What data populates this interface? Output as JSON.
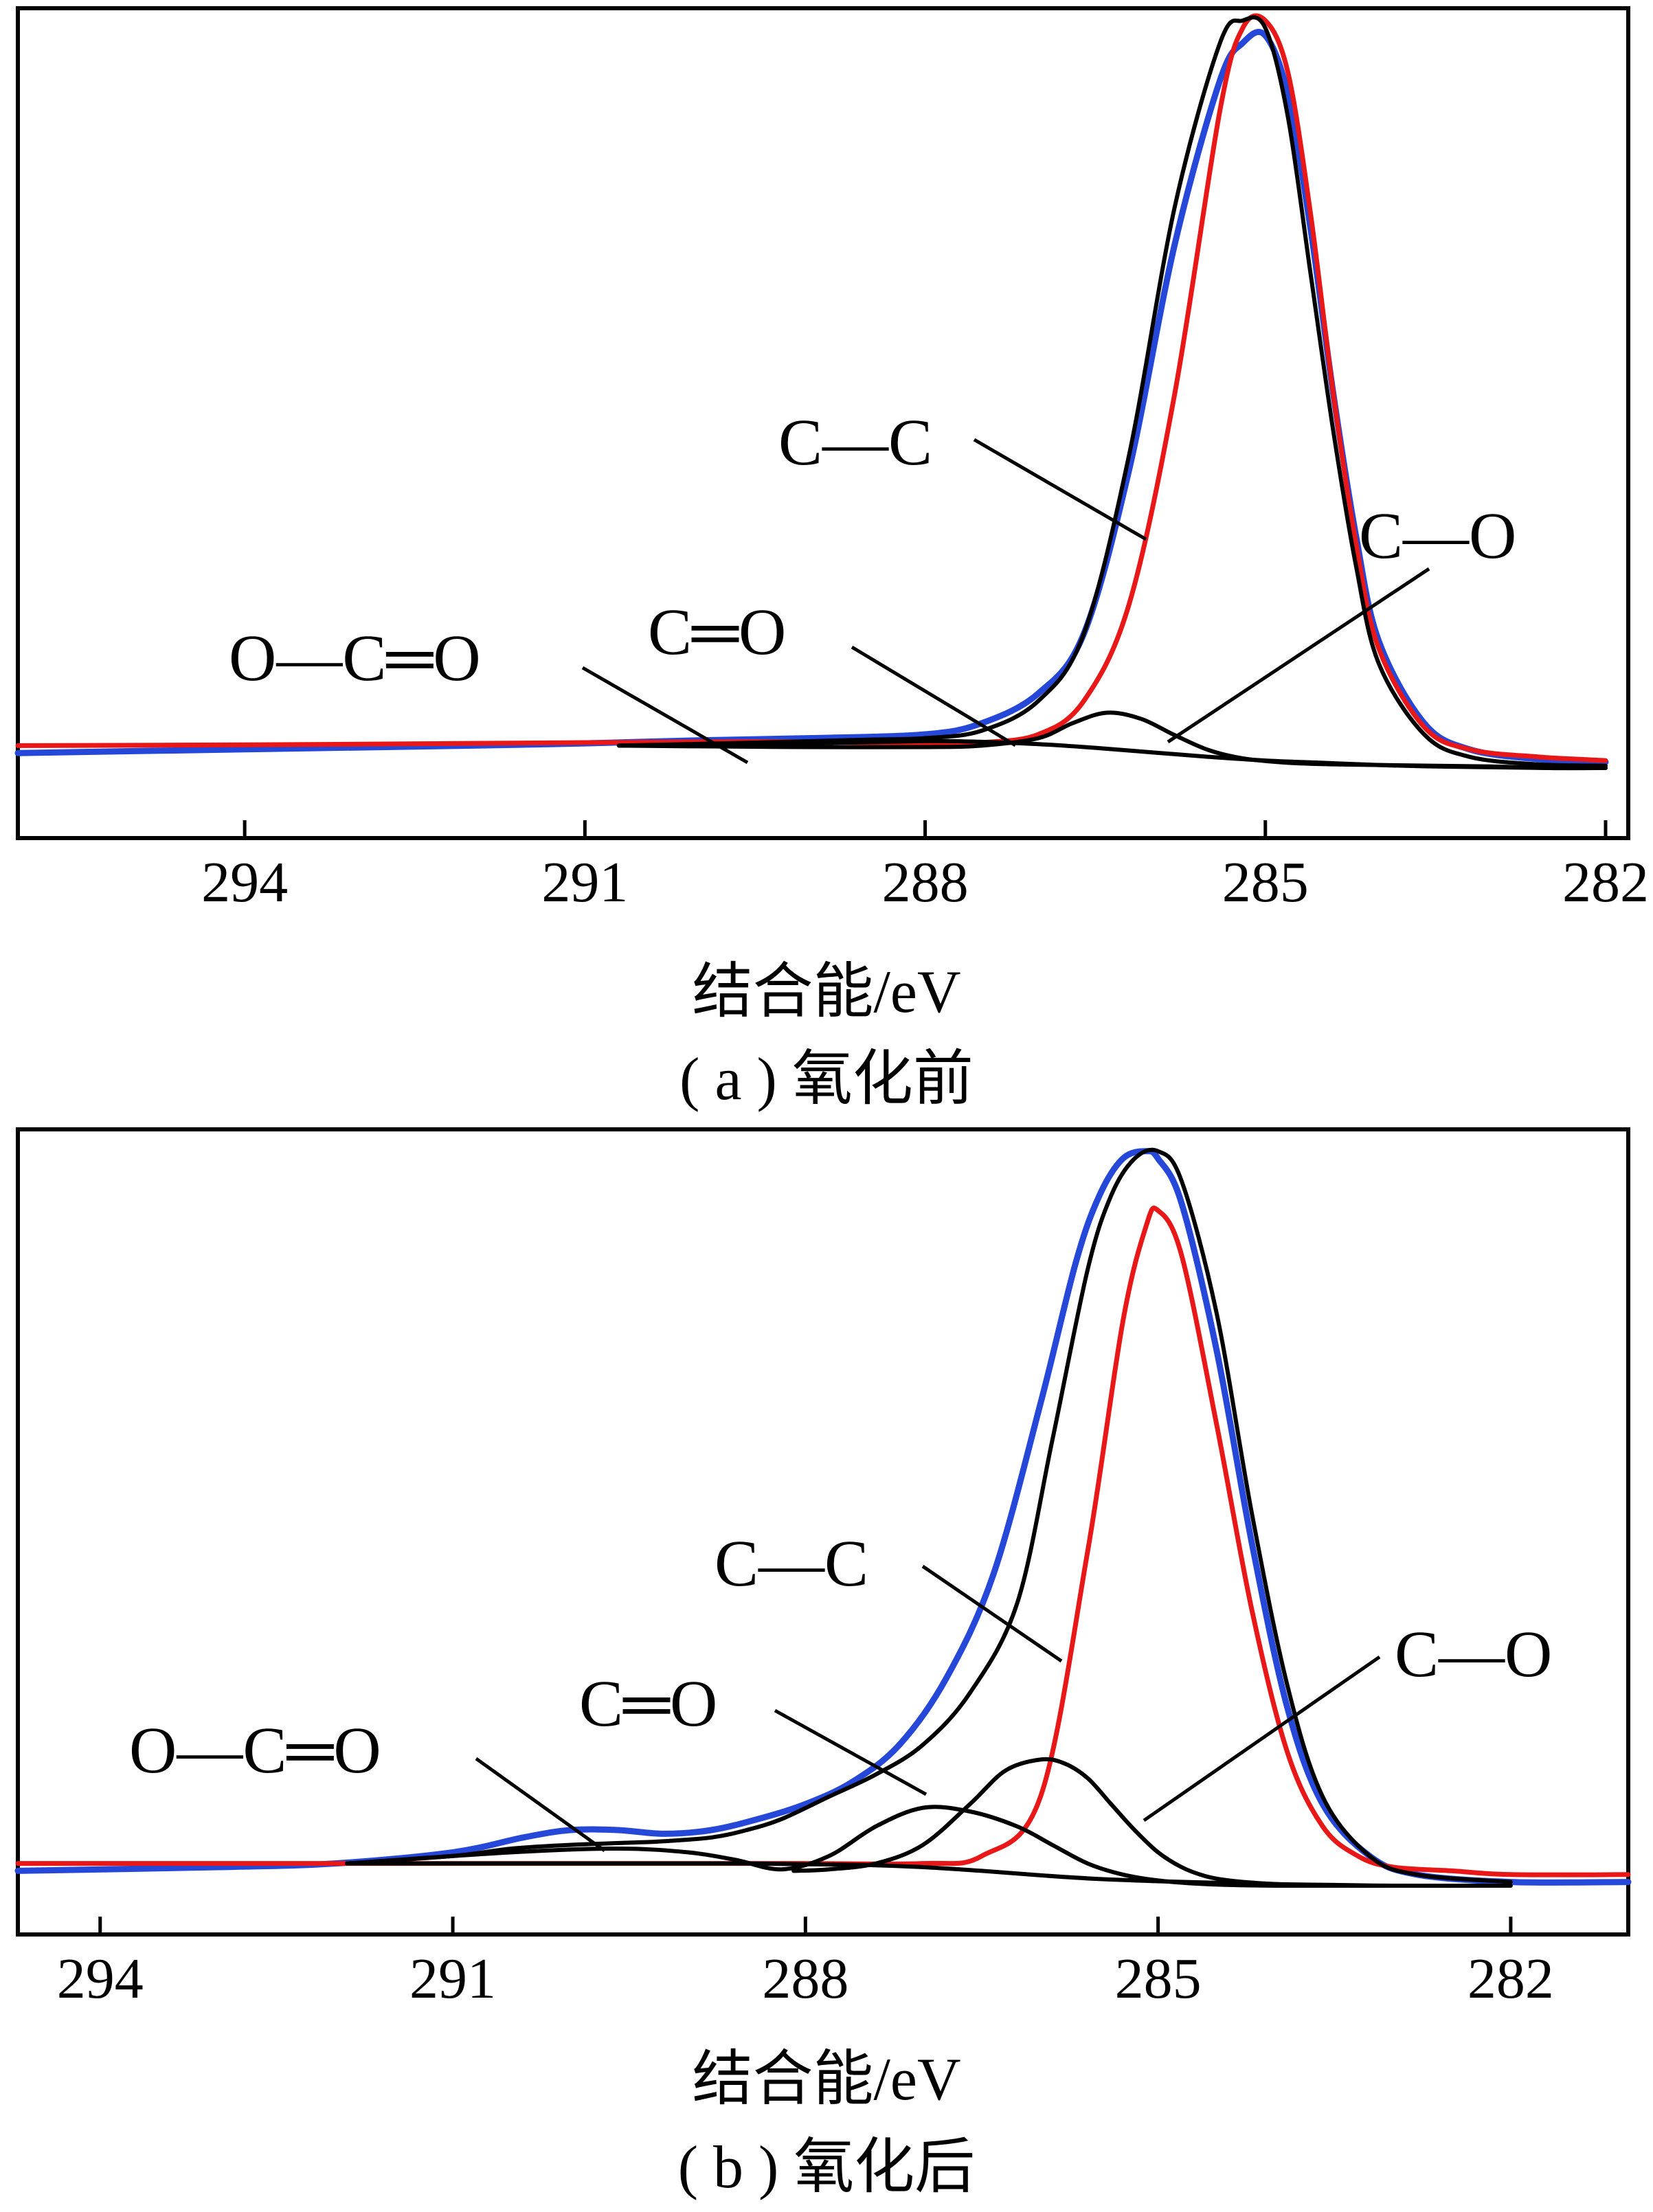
{
  "chart_data": [
    {
      "type": "line",
      "caption": "( a ) 氧化前",
      "xlabel": "结合能/eV",
      "ylabel": "",
      "x_ticks": [
        294,
        291,
        288,
        285,
        282
      ],
      "x_ticklabels": [
        "294",
        "291",
        "288",
        "285",
        "282"
      ],
      "xlim": [
        296.0,
        281.8
      ],
      "x_reversed": true,
      "ylim": [
        0,
        1.0
      ],
      "y_ticks_shown": false,
      "grid": false,
      "legend": "none",
      "colors": {
        "envelope": "#2548d8",
        "fit": "#e81818",
        "components": "#000000"
      },
      "series": [
        {
          "color": "#2548d8",
          "x": [
            296.0,
            294,
            292,
            291,
            290,
            289,
            288,
            287.5,
            287,
            286.6,
            286.2,
            285.8,
            285.4,
            285.2,
            285.0,
            284.8,
            284.6,
            284.4,
            284.2,
            284.0,
            283.6,
            283.2,
            282.6,
            282.0
          ],
          "y": [
            0.02,
            0.025,
            0.03,
            0.033,
            0.037,
            0.04,
            0.045,
            0.06,
            0.1,
            0.18,
            0.4,
            0.7,
            0.92,
            0.97,
            0.98,
            0.9,
            0.72,
            0.5,
            0.31,
            0.17,
            0.06,
            0.025,
            0.012,
            0.008
          ]
        },
        {
          "color": "#e81818",
          "x": [
            296.0,
            294,
            292,
            291,
            290,
            289,
            288,
            287.5,
            287,
            286.6,
            286.2,
            285.8,
            285.4,
            285.2,
            285.0,
            284.8,
            284.6,
            284.4,
            284.2,
            284.0,
            283.6,
            283.2,
            282.6,
            282.0
          ],
          "y": [
            0.03,
            0.031,
            0.033,
            0.034,
            0.035,
            0.035,
            0.032,
            0.034,
            0.045,
            0.09,
            0.22,
            0.5,
            0.88,
            0.99,
            1.0,
            0.93,
            0.74,
            0.5,
            0.3,
            0.16,
            0.055,
            0.025,
            0.015,
            0.01
          ]
        },
        {
          "color": "#000000",
          "x": [
            290.7,
            289.5,
            288.5,
            288.0,
            287.5,
            287,
            286.6,
            286.2,
            285.8,
            285.4,
            285.2,
            285.0,
            284.8,
            284.6,
            284.4,
            284.2,
            284.0,
            283.6,
            283.2,
            282.6,
            282.0
          ],
          "y": [
            0.03,
            0.034,
            0.038,
            0.04,
            0.05,
            0.09,
            0.18,
            0.42,
            0.75,
            0.97,
            1.0,
            0.99,
            0.87,
            0.66,
            0.45,
            0.27,
            0.14,
            0.045,
            0.015,
            0.005,
            0.003
          ]
        },
        {
          "color": "#000000",
          "x": [
            290.7,
            290,
            289,
            288,
            287.5,
            287.0,
            286.7,
            286.4,
            286.1,
            285.8,
            285.5,
            285.2,
            284.8,
            284.4,
            284.0,
            283.5,
            283.0,
            282.5,
            282.0
          ],
          "y": [
            0.03,
            0.029,
            0.028,
            0.028,
            0.03,
            0.04,
            0.06,
            0.074,
            0.066,
            0.044,
            0.024,
            0.013,
            0.007,
            0.005,
            0.004,
            0.003,
            0.002,
            0.0,
            0.0
          ]
        },
        {
          "color": "#000000",
          "x": [
            290.7,
            289,
            288,
            287.5,
            287.0,
            286.5,
            286.0,
            285.5,
            285.0,
            284.5,
            284.0,
            283.5,
            283.0,
            282.5,
            282.0
          ],
          "y": [
            0.03,
            0.033,
            0.036,
            0.035,
            0.032,
            0.027,
            0.021,
            0.015,
            0.01,
            0.007,
            0.004,
            0.002,
            0.001,
            0.0,
            0.0
          ]
        }
      ],
      "annotations": [
        {
          "label": "C—C",
          "x": 285.9
        },
        {
          "label": "C—O",
          "x": 285.6
        },
        {
          "label": "C═O",
          "x": 287.1
        },
        {
          "label": "O—C═O",
          "x": 289.3
        }
      ]
    },
    {
      "type": "line",
      "caption": "( b ) 氧化后",
      "xlabel": "结合能/eV",
      "ylabel": "",
      "x_ticks": [
        294,
        291,
        288,
        285,
        282
      ],
      "x_ticklabels": [
        "294",
        "291",
        "288",
        "285",
        "282"
      ],
      "xlim": [
        294.7,
        281.0
      ],
      "x_reversed": true,
      "ylim": [
        0,
        1.0
      ],
      "y_ticks_shown": false,
      "grid": false,
      "legend": "none",
      "colors": {
        "envelope": "#2548d8",
        "fit": "#e81818",
        "components": "#000000"
      },
      "series": [
        {
          "color": "#2548d8",
          "x": [
            294.7,
            293,
            292,
            291,
            290.4,
            290.0,
            289.6,
            289.2,
            288.8,
            288.4,
            288.0,
            287.6,
            287.2,
            286.8,
            286.4,
            286.0,
            285.7,
            285.5,
            285.3,
            285.1,
            285.0,
            284.8,
            284.5,
            284.2,
            283.9,
            283.6,
            283.2,
            282.8,
            282.0,
            281.0
          ],
          "y": [
            0.02,
            0.025,
            0.03,
            0.045,
            0.065,
            0.075,
            0.075,
            0.07,
            0.075,
            0.09,
            0.11,
            0.14,
            0.19,
            0.28,
            0.42,
            0.65,
            0.84,
            0.93,
            0.98,
            0.99,
            0.98,
            0.92,
            0.72,
            0.46,
            0.24,
            0.11,
            0.04,
            0.015,
            0.005,
            0.005
          ]
        },
        {
          "color": "#e81818",
          "x": [
            294.7,
            293,
            291,
            289,
            288,
            287,
            286.5,
            286.0,
            285.6,
            285.3,
            285.1,
            285.0,
            284.8,
            284.5,
            284.2,
            283.9,
            283.6,
            283.3,
            283.0,
            282.5,
            282.0,
            281.0
          ],
          "y": [
            0.03,
            0.03,
            0.03,
            0.03,
            0.03,
            0.03,
            0.04,
            0.12,
            0.45,
            0.76,
            0.89,
            0.91,
            0.85,
            0.62,
            0.37,
            0.18,
            0.08,
            0.04,
            0.025,
            0.02,
            0.015,
            0.015
          ]
        },
        {
          "color": "#000000",
          "x": [
            291.9,
            291.0,
            290.5,
            290.0,
            289.5,
            289.2,
            288.8,
            288.5,
            288.2,
            287.8,
            287.4,
            287.0,
            286.6,
            286.2,
            285.9,
            285.6,
            285.4,
            285.2,
            285.0,
            284.8,
            284.5,
            284.2,
            283.9,
            283.6,
            283.2,
            282.8,
            282.0
          ],
          "y": [
            0.03,
            0.04,
            0.05,
            0.055,
            0.058,
            0.06,
            0.065,
            0.075,
            0.09,
            0.12,
            0.15,
            0.19,
            0.26,
            0.38,
            0.6,
            0.83,
            0.93,
            0.98,
            0.99,
            0.95,
            0.77,
            0.5,
            0.27,
            0.12,
            0.04,
            0.015,
            0.005
          ]
        },
        {
          "color": "#000000",
          "x": [
            291.9,
            290.5,
            289.6,
            289.0,
            288.6,
            288.2,
            287.8,
            287.4,
            287.0,
            286.6,
            286.2,
            285.9,
            285.6,
            285.3,
            285.0,
            284.7,
            284.4,
            284.0,
            283.5,
            283.0
          ],
          "y": [
            0.03,
            0.045,
            0.05,
            0.045,
            0.035,
            0.022,
            0.04,
            0.08,
            0.105,
            0.1,
            0.08,
            0.055,
            0.03,
            0.015,
            0.007,
            0.003,
            0.001,
            0.0,
            0.0,
            0.0
          ]
        },
        {
          "color": "#000000",
          "x": [
            288.1,
            287.8,
            287.4,
            287.0,
            286.6,
            286.3,
            286.0,
            285.8,
            285.6,
            285.4,
            285.2,
            285.0,
            284.8,
            284.6,
            284.4,
            284.1,
            283.8,
            283.4,
            283.0
          ],
          "y": [
            0.02,
            0.022,
            0.03,
            0.055,
            0.11,
            0.155,
            0.17,
            0.165,
            0.145,
            0.11,
            0.075,
            0.045,
            0.025,
            0.013,
            0.007,
            0.003,
            0.001,
            0.0,
            0.0
          ]
        },
        {
          "color": "#000000",
          "x": [
            291.9,
            290,
            288.5,
            287.5,
            287.0,
            286.5,
            286.0,
            285.5,
            285.0,
            284.5,
            284.0,
            283.5,
            283.0,
            282.0
          ],
          "y": [
            0.03,
            0.03,
            0.03,
            0.028,
            0.025,
            0.02,
            0.014,
            0.009,
            0.006,
            0.004,
            0.002,
            0.001,
            0.0,
            0.0
          ]
        }
      ],
      "annotations": [
        {
          "label": "C—C",
          "x": 285.7
        },
        {
          "label": "C—O",
          "x": 285.0
        },
        {
          "label": "C═O",
          "x": 286.6
        },
        {
          "label": "O—C═O",
          "x": 289.7
        }
      ]
    }
  ]
}
